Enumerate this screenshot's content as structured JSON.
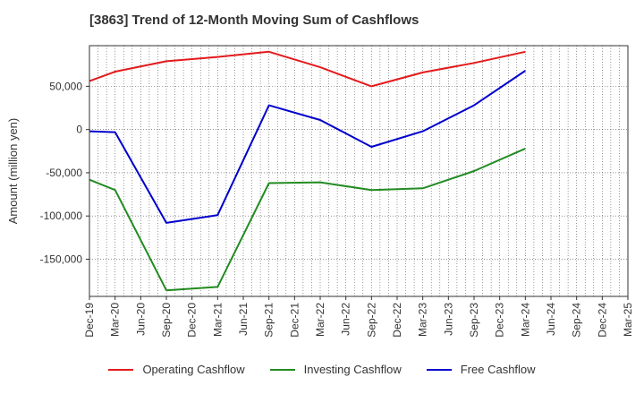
{
  "title": "[3863]  Trend of 12-Month Moving Sum of Cashflows",
  "chart_data": {
    "type": "line",
    "title": "[3863]  Trend of 12-Month Moving Sum of Cashflows",
    "ylabel": "Amount (million yen)",
    "xlabel": "",
    "x": [
      "Dec-19",
      "Mar-20",
      "Jun-20",
      "Sep-20",
      "Dec-20",
      "Mar-21",
      "Jun-21",
      "Sep-21",
      "Dec-21",
      "Mar-22",
      "Jun-22",
      "Sep-22",
      "Dec-22",
      "Mar-23",
      "Jun-23",
      "Sep-23",
      "Dec-23",
      "Mar-24",
      "Jun-24",
      "Sep-24",
      "Dec-24",
      "Mar-25"
    ],
    "ylim": [
      -193000,
      97000
    ],
    "yticks": [
      -150000,
      -100000,
      -50000,
      0,
      50000
    ],
    "ytick_labels": [
      "-150,000",
      "-100,000",
      "-50,000",
      "0",
      "50,000"
    ],
    "grid": true,
    "legend_position": "bottom",
    "series": [
      {
        "name": "Operating Cashflow",
        "color": "#e31a1c",
        "values": [
          56000,
          67000,
          null,
          79000,
          null,
          84000,
          null,
          90000,
          null,
          72000,
          null,
          50000,
          null,
          66000,
          null,
          77000,
          null,
          90000,
          null,
          null,
          null,
          null
        ]
      },
      {
        "name": "Investing Cashflow",
        "color": "#228b22",
        "values": [
          -58000,
          -70000,
          null,
          -186000,
          null,
          -182000,
          null,
          -62000,
          null,
          -61000,
          null,
          -70000,
          null,
          -68000,
          null,
          -48000,
          null,
          -22000,
          null,
          null,
          null,
          null
        ]
      },
      {
        "name": "Free Cashflow",
        "color": "#0000cd",
        "values": [
          -2000,
          -3000,
          null,
          -108000,
          null,
          -99000,
          null,
          28000,
          null,
          11000,
          null,
          -20000,
          null,
          -2000,
          null,
          28000,
          null,
          68000,
          null,
          null,
          null,
          null
        ]
      }
    ]
  }
}
